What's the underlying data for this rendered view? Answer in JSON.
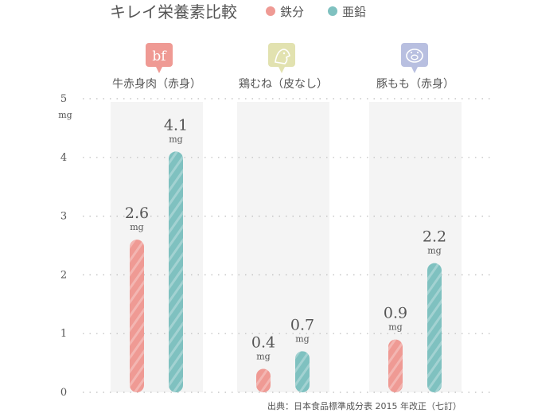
{
  "chart_data": {
    "type": "bar",
    "title": "キレイ栄養素比較",
    "categories": [
      "牛赤身肉（赤身）",
      "鶏むね（皮なし）",
      "豚もも（赤身）"
    ],
    "category_icons": [
      "bf",
      "chicken-icon",
      "pig-icon"
    ],
    "series": [
      {
        "name": "鉄分",
        "color": "#ef9a94",
        "values": [
          2.6,
          0.4,
          0.9
        ]
      },
      {
        "name": "亜鉛",
        "color": "#7fc1c0",
        "values": [
          4.1,
          0.7,
          2.2
        ]
      }
    ],
    "value_unit": "mg",
    "y_tick_labels": [
      "0",
      "1",
      "2",
      "3",
      "4",
      "5"
    ],
    "y_unit_label": "mg",
    "ylim": [
      0,
      5
    ],
    "grid": true,
    "legend_position": "top",
    "source": "出典：日本食品標準成分表 2015 年改正（七訂）",
    "colors": {
      "background_band": "#f4f4f4",
      "text": "#555555",
      "grid": "#bbbbbb",
      "icon_beef": "#ef9a94",
      "icon_chicken": "#e2e2b0",
      "icon_pig": "#b8bfe0"
    }
  }
}
